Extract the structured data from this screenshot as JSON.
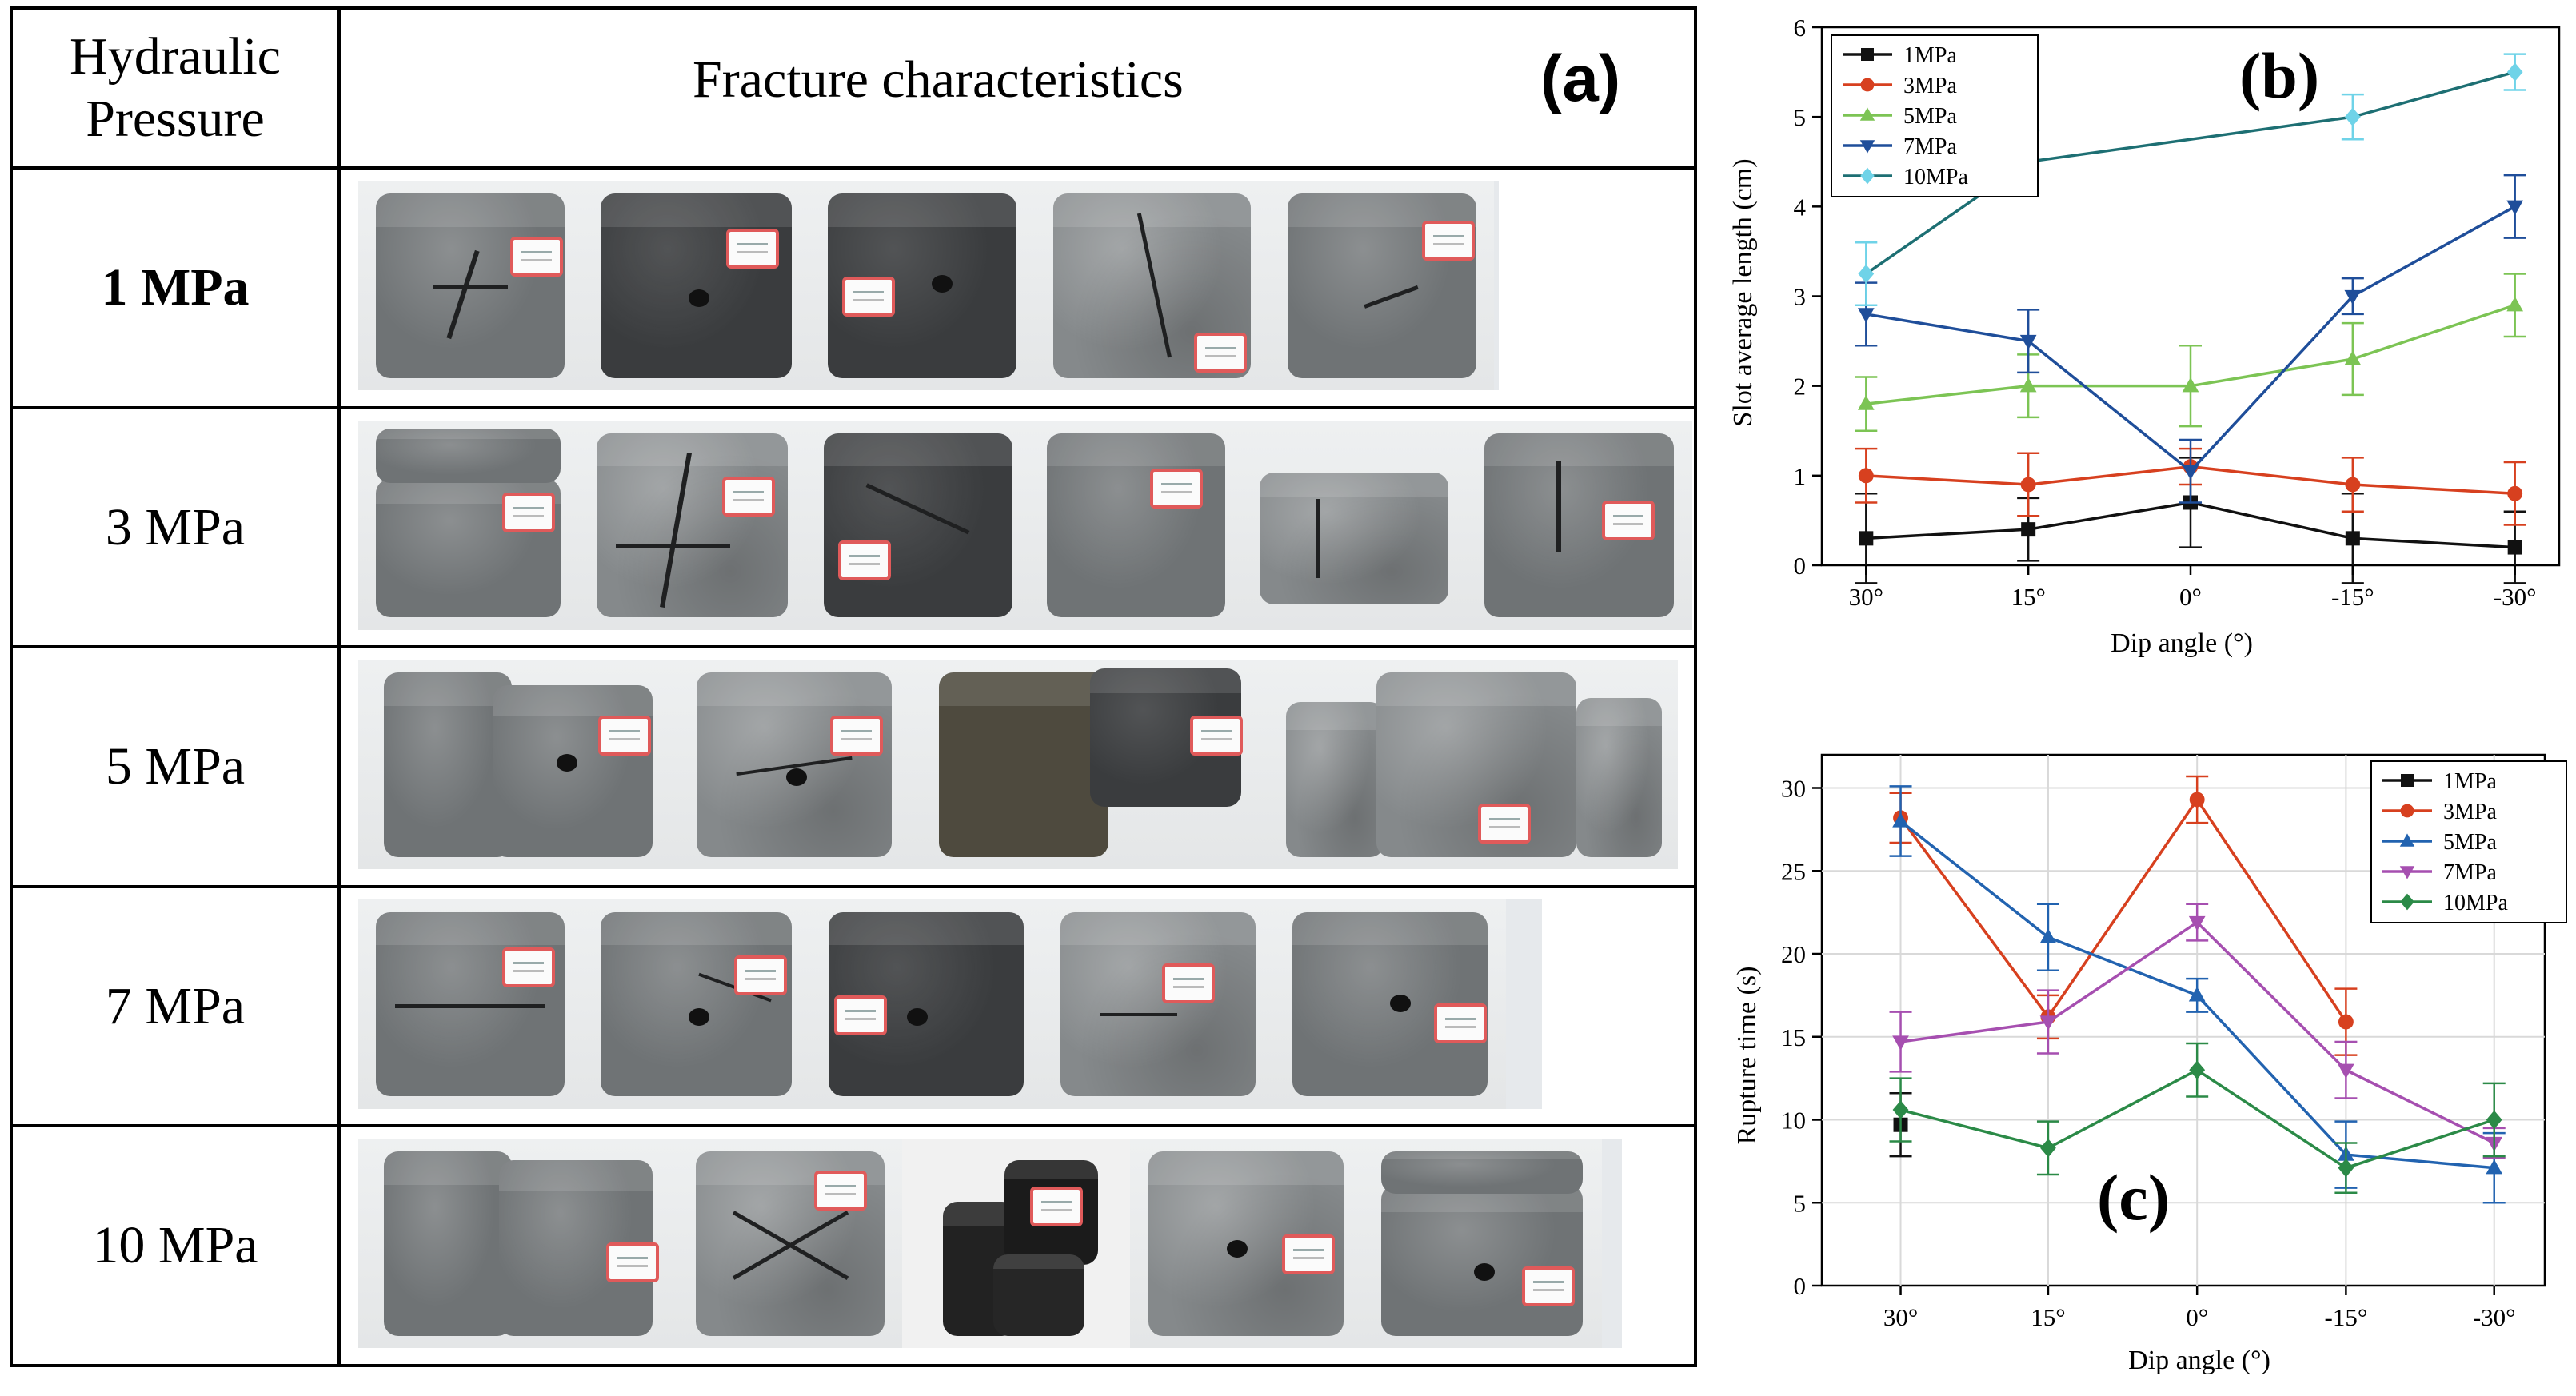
{
  "panel_a": {
    "label": "(a)",
    "header": {
      "pressure_line1": "Hydraulic",
      "pressure_line2": "Pressure",
      "characteristics": "Fracture characteristics"
    },
    "rows": [
      {
        "pressure": "1 MPa"
      },
      {
        "pressure": "3 MPa"
      },
      {
        "pressure": "5 MPa"
      },
      {
        "pressure": "7 MPa"
      },
      {
        "pressure": "10 MPa"
      }
    ]
  },
  "chart_data": [
    {
      "id": "b",
      "type": "line",
      "panel_label": "(b)",
      "title": "",
      "xlabel": "Dip angle (°)",
      "ylabel": "Slot average length (cm)",
      "categories": [
        "30°",
        "15°",
        "0°",
        "-15°",
        "-30°"
      ],
      "ylim": [
        0,
        6
      ],
      "yticks": [
        0,
        1,
        2,
        3,
        4,
        5,
        6
      ],
      "grid": false,
      "legend_position": "top-left",
      "series": [
        {
          "name": "1MPa",
          "color": "#111111",
          "marker": "square",
          "values": [
            0.3,
            0.4,
            0.7,
            0.3,
            0.2
          ],
          "errors": [
            0.5,
            0.35,
            0.5,
            0.5,
            0.4
          ]
        },
        {
          "name": "3MPa",
          "color": "#d7401f",
          "marker": "circle",
          "values": [
            1.0,
            0.9,
            1.1,
            0.9,
            0.8
          ],
          "errors": [
            0.3,
            0.35,
            0.2,
            0.3,
            0.35
          ]
        },
        {
          "name": "5MPa",
          "color": "#7cc454",
          "marker": "triangle-up",
          "values": [
            1.8,
            2.0,
            2.0,
            2.3,
            2.9
          ],
          "errors": [
            0.3,
            0.35,
            0.45,
            0.4,
            0.35
          ]
        },
        {
          "name": "7MPa",
          "color": "#1f4e9a",
          "marker": "triangle-down",
          "values": [
            2.8,
            2.5,
            1.05,
            3.0,
            4.0
          ],
          "errors": [
            0.35,
            0.35,
            0.35,
            0.2,
            0.35
          ]
        },
        {
          "name": "10MPa",
          "color": "#1d6f73",
          "marker_color": "#6fd3e8",
          "marker": "diamond",
          "values": [
            3.25,
            4.5,
            null,
            5.0,
            5.5
          ],
          "errors": [
            0.35,
            0.35,
            null,
            0.25,
            0.2
          ]
        }
      ]
    },
    {
      "id": "c",
      "type": "line",
      "panel_label": "(c)",
      "title": "",
      "xlabel": "Dip angle (°)",
      "ylabel": "Rupture time (s)",
      "categories": [
        "30°",
        "15°",
        "0°",
        "-15°",
        "-30°"
      ],
      "ylim": [
        0,
        32
      ],
      "yticks": [
        0,
        5,
        10,
        15,
        20,
        25,
        30
      ],
      "grid": true,
      "legend_position": "top-right",
      "series": [
        {
          "name": "1MPa",
          "color": "#111111",
          "marker": "square",
          "values": [
            9.7,
            null,
            null,
            null,
            null
          ],
          "errors": [
            1.9,
            null,
            null,
            null,
            null
          ]
        },
        {
          "name": "3MPa",
          "color": "#d7401f",
          "marker": "circle",
          "values": [
            28.2,
            16.2,
            29.3,
            15.9,
            null
          ],
          "errors": [
            1.5,
            1.3,
            1.4,
            2.0,
            null
          ]
        },
        {
          "name": "5MPa",
          "color": "#2263b0",
          "marker": "triangle-up",
          "values": [
            28.0,
            21.0,
            17.5,
            7.9,
            7.1
          ],
          "errors": [
            2.1,
            2.0,
            1.0,
            2.0,
            2.1
          ]
        },
        {
          "name": "7MPa",
          "color": "#a64fb0",
          "marker": "triangle-down",
          "values": [
            14.7,
            15.9,
            21.9,
            13.0,
            8.6
          ],
          "errors": [
            1.8,
            1.9,
            1.1,
            1.7,
            0.9
          ]
        },
        {
          "name": "10MPa",
          "color": "#2b8a47",
          "marker": "diamond",
          "values": [
            10.6,
            8.3,
            13.0,
            7.1,
            10.0
          ],
          "errors": [
            1.9,
            1.6,
            1.6,
            1.5,
            2.2
          ]
        }
      ]
    }
  ]
}
